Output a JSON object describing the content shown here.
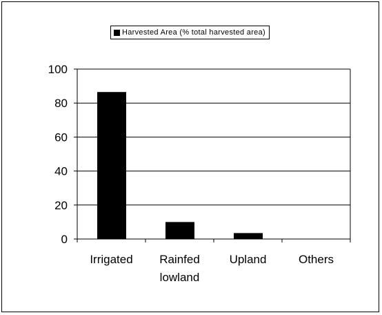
{
  "chart_data": {
    "type": "bar",
    "categories": [
      "Irrigated",
      "Rainfed\nlowland",
      "Upland",
      "Others"
    ],
    "series": [
      {
        "name": "Harvested Area (% total harvested area)",
        "values": [
          86.5,
          10,
          3.5,
          0
        ]
      }
    ],
    "ylim": [
      0,
      100
    ],
    "yticks": [
      0,
      20,
      40,
      60,
      80,
      100
    ],
    "grid": true,
    "legend_position": "top",
    "bar_color": "#000000"
  }
}
